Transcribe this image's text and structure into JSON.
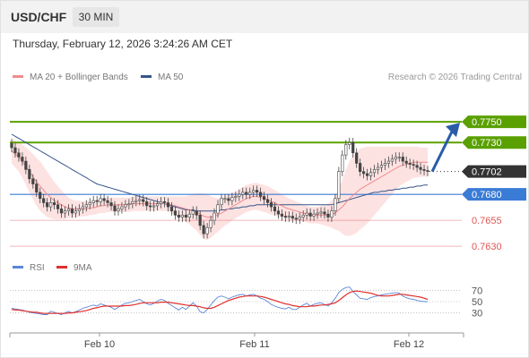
{
  "header": {
    "symbol": "USD/CHF",
    "timeframe": "30 MIN",
    "datetime": "Thursday, February 12, 2026 3:24:26 AM CET"
  },
  "legend": {
    "ma20": "MA 20 + Bollinger Bands",
    "ma50": "MA 50",
    "copyright": "Research © 2026 Trading Central",
    "rsi": "RSI",
    "rsi_ma": "9MA"
  },
  "colors": {
    "ma20": "#f08c8c",
    "bands_fill": "#fde2e2",
    "ma50": "#34558b",
    "resistance": "#5aa000",
    "support": "#3a7bd5",
    "support_minor": "#e05555",
    "current": "#333333",
    "arrow": "#2a5ca8",
    "rsi": "#5b86d9",
    "rsi_ma": "#e0302d",
    "candle_up": "#ffffff",
    "candle_down": "#444444"
  },
  "chart_data": {
    "type": "candlestick",
    "y_range": [
      0.7618,
      0.7782
    ],
    "levels": [
      {
        "value": 0.775,
        "label": "0.7750",
        "kind": "resistance"
      },
      {
        "value": 0.773,
        "label": "0.7730",
        "kind": "resistance"
      },
      {
        "value": 0.7702,
        "label": "0.7702",
        "kind": "current"
      },
      {
        "value": 0.768,
        "label": "0.7680",
        "kind": "support"
      },
      {
        "value": 0.7655,
        "label": "0.7655",
        "kind": "support_minor"
      },
      {
        "value": 0.763,
        "label": "0.7630",
        "kind": "support_minor"
      }
    ],
    "x_ticks": [
      "Feb 10",
      "Feb 11",
      "Feb 12"
    ],
    "close": [
      0.7725,
      0.772,
      0.7716,
      0.7712,
      0.7704,
      0.7695,
      0.769,
      0.7682,
      0.7676,
      0.7672,
      0.7668,
      0.7672,
      0.767,
      0.7666,
      0.7662,
      0.7664,
      0.7666,
      0.7662,
      0.7664,
      0.7666,
      0.7668,
      0.767,
      0.7672,
      0.7674,
      0.7673,
      0.7676,
      0.7674,
      0.7672,
      0.7669,
      0.7664,
      0.7666,
      0.7668,
      0.767,
      0.7671,
      0.7673,
      0.7674,
      0.7675,
      0.7673,
      0.7669,
      0.7668,
      0.7669,
      0.7671,
      0.7673,
      0.7672,
      0.7668,
      0.7664,
      0.766,
      0.7658,
      0.766,
      0.7658,
      0.7661,
      0.7664,
      0.766,
      0.765,
      0.7642,
      0.7648,
      0.7655,
      0.7662,
      0.767,
      0.7676,
      0.7676,
      0.7674,
      0.7677,
      0.7678,
      0.768,
      0.7682,
      0.768,
      0.7682,
      0.7684,
      0.7682,
      0.7678,
      0.7675,
      0.7672,
      0.7668,
      0.7664,
      0.7661,
      0.7659,
      0.7658,
      0.7659,
      0.7657,
      0.7656,
      0.7658,
      0.766,
      0.7662,
      0.7659,
      0.7661,
      0.7662,
      0.7663,
      0.7661,
      0.7658,
      0.7664,
      0.7676,
      0.7702,
      0.7718,
      0.7728,
      0.773,
      0.772,
      0.771,
      0.7702,
      0.77,
      0.7698,
      0.7701,
      0.7704,
      0.7706,
      0.7708,
      0.771,
      0.7712,
      0.7714,
      0.7716,
      0.7716,
      0.7712,
      0.771,
      0.7709,
      0.7708,
      0.7706,
      0.7704,
      0.7703,
      0.7702
    ],
    "ma20": [
      0.7722,
      0.7719,
      0.7716,
      0.7712,
      0.7707,
      0.7702,
      0.7697,
      0.7692,
      0.7688,
      0.7684,
      0.768,
      0.7677,
      0.7674,
      0.7672,
      0.767,
      0.7668,
      0.7667,
      0.7666,
      0.7666,
      0.7666,
      0.7666,
      0.7666,
      0.7667,
      0.7667,
      0.7668,
      0.7669,
      0.7669,
      0.767,
      0.767,
      0.767,
      0.767,
      0.767,
      0.767,
      0.767,
      0.7671,
      0.7671,
      0.7671,
      0.7671,
      0.7671,
      0.7671,
      0.7671,
      0.7671,
      0.7671,
      0.7671,
      0.7671,
      0.767,
      0.7669,
      0.7668,
      0.7667,
      0.7666,
      0.7665,
      0.7664,
      0.7663,
      0.7661,
      0.7659,
      0.7658,
      0.7658,
      0.7659,
      0.766,
      0.7662,
      0.7664,
      0.7666,
      0.7668,
      0.767,
      0.7672,
      0.7674,
      0.7676,
      0.7677,
      0.7678,
      0.7678,
      0.7677,
      0.7676,
      0.7675,
      0.7673,
      0.7672,
      0.767,
      0.7669,
      0.7667,
      0.7666,
      0.7665,
      0.7664,
      0.7663,
      0.7662,
      0.7661,
      0.766,
      0.766,
      0.766,
      0.766,
      0.766,
      0.766,
      0.7661,
      0.7662,
      0.7665,
      0.7668,
      0.7672,
      0.7676,
      0.7679,
      0.7682,
      0.7685,
      0.7687,
      0.7689,
      0.7691,
      0.7693,
      0.7695,
      0.7697,
      0.7699,
      0.7701,
      0.7703,
      0.7705,
      0.7707,
      0.7708,
      0.7709,
      0.771,
      0.7711,
      0.7711,
      0.7711,
      0.7711,
      0.7711
    ],
    "bb_width": [
      0.0012,
      0.0013,
      0.0014,
      0.0016,
      0.0018,
      0.002,
      0.0022,
      0.0023,
      0.0024,
      0.0023,
      0.0022,
      0.002,
      0.0018,
      0.0016,
      0.0014,
      0.0012,
      0.001,
      0.0009,
      0.0008,
      0.0008,
      0.0007,
      0.0007,
      0.0007,
      0.0007,
      0.0007,
      0.0007,
      0.0007,
      0.0007,
      0.0007,
      0.0007,
      0.0007,
      0.0007,
      0.0007,
      0.0007,
      0.0007,
      0.0007,
      0.0007,
      0.0007,
      0.0007,
      0.0007,
      0.0007,
      0.0007,
      0.0007,
      0.0007,
      0.0007,
      0.0008,
      0.0009,
      0.001,
      0.0011,
      0.0012,
      0.0014,
      0.0016,
      0.0018,
      0.002,
      0.0022,
      0.0022,
      0.002,
      0.0018,
      0.0016,
      0.0015,
      0.0014,
      0.0014,
      0.0013,
      0.0013,
      0.0013,
      0.0013,
      0.0013,
      0.0013,
      0.0013,
      0.0013,
      0.0013,
      0.0013,
      0.0013,
      0.0013,
      0.0012,
      0.0012,
      0.0011,
      0.0011,
      0.001,
      0.001,
      0.0009,
      0.0009,
      0.0008,
      0.0008,
      0.0008,
      0.0008,
      0.0008,
      0.0009,
      0.001,
      0.0011,
      0.0013,
      0.0016,
      0.002,
      0.0026,
      0.0032,
      0.0036,
      0.0038,
      0.0039,
      0.0039,
      0.0038,
      0.0037,
      0.0035,
      0.0033,
      0.0031,
      0.0029,
      0.0027,
      0.0025,
      0.0023,
      0.0021,
      0.0019,
      0.0018,
      0.0017,
      0.0016,
      0.0015,
      0.0015,
      0.0014,
      0.0014,
      0.0014
    ],
    "ma50": [
      0.7738,
      0.7736,
      0.7734,
      0.7732,
      0.773,
      0.7728,
      0.7726,
      0.7724,
      0.7722,
      0.772,
      0.7718,
      0.7716,
      0.7714,
      0.7712,
      0.771,
      0.7708,
      0.7706,
      0.7704,
      0.7702,
      0.77,
      0.7698,
      0.7696,
      0.7694,
      0.7692,
      0.769,
      0.7689,
      0.7688,
      0.7687,
      0.7686,
      0.7685,
      0.7684,
      0.7683,
      0.7682,
      0.7681,
      0.768,
      0.7679,
      0.7678,
      0.7677,
      0.7676,
      0.7675,
      0.7674,
      0.7673,
      0.7672,
      0.7671,
      0.767,
      0.7669,
      0.7668,
      0.7667,
      0.7666,
      0.7665,
      0.7665,
      0.7665,
      0.7664,
      0.7664,
      0.7664,
      0.7664,
      0.7664,
      0.7664,
      0.7664,
      0.7665,
      0.7665,
      0.7666,
      0.7666,
      0.7667,
      0.7667,
      0.7668,
      0.7668,
      0.7669,
      0.7669,
      0.767,
      0.767,
      0.767,
      0.767,
      0.767,
      0.767,
      0.767,
      0.767,
      0.767,
      0.767,
      0.767,
      0.767,
      0.767,
      0.767,
      0.767,
      0.767,
      0.767,
      0.767,
      0.767,
      0.767,
      0.767,
      0.767,
      0.7671,
      0.7672,
      0.7673,
      0.7674,
      0.7675,
      0.7676,
      0.7677,
      0.7678,
      0.7679,
      0.768,
      0.7681,
      0.7682,
      0.7682,
      0.7683,
      0.7683,
      0.7684,
      0.7684,
      0.7685,
      0.7685,
      0.7686,
      0.7686,
      0.7687,
      0.7687,
      0.7688,
      0.7688,
      0.7689,
      0.7689
    ],
    "rsi": {
      "ticks": [
        30,
        50,
        70
      ],
      "y_range": [
        15,
        85
      ],
      "rsi": [
        38,
        37,
        36,
        35,
        33,
        31,
        30,
        29,
        28,
        27,
        27,
        33,
        31,
        29,
        27,
        30,
        33,
        30,
        32,
        35,
        38,
        40,
        42,
        44,
        42,
        46,
        44,
        42,
        40,
        36,
        40,
        44,
        47,
        48,
        50,
        52,
        54,
        50,
        46,
        44,
        47,
        51,
        54,
        52,
        47,
        43,
        39,
        35,
        40,
        36,
        42,
        48,
        42,
        32,
        30,
        36,
        44,
        52,
        58,
        60,
        58,
        55,
        58,
        60,
        62,
        63,
        60,
        62,
        63,
        60,
        56,
        54,
        50,
        45,
        42,
        40,
        38,
        37,
        40,
        36,
        36,
        40,
        44,
        47,
        42,
        45,
        47,
        48,
        45,
        42,
        48,
        56,
        66,
        72,
        75,
        76,
        68,
        62,
        56,
        55,
        54,
        57,
        59,
        60,
        62,
        63,
        64,
        65,
        66,
        65,
        60,
        57,
        55,
        54,
        52,
        51,
        50,
        50
      ],
      "ma9": [
        36,
        35,
        35,
        34,
        33,
        32,
        31,
        31,
        30,
        29,
        29,
        29,
        29,
        29,
        29,
        29,
        30,
        30,
        31,
        32,
        33,
        34,
        36,
        38,
        39,
        41,
        42,
        42,
        42,
        42,
        42,
        42,
        43,
        43,
        44,
        45,
        47,
        48,
        48,
        48,
        48,
        48,
        49,
        49,
        49,
        48,
        47,
        46,
        45,
        44,
        43,
        43,
        42,
        41,
        39,
        38,
        38,
        40,
        43,
        46,
        49,
        52,
        54,
        56,
        58,
        59,
        60,
        60,
        60,
        60,
        59,
        58,
        56,
        54,
        52,
        50,
        48,
        46,
        45,
        43,
        42,
        41,
        41,
        41,
        42,
        42,
        43,
        44,
        44,
        45,
        46,
        48,
        52,
        57,
        62,
        66,
        68,
        69,
        68,
        67,
        66,
        65,
        63,
        61,
        60,
        60,
        60,
        61,
        62,
        63,
        63,
        62,
        61,
        60,
        59,
        58,
        56,
        54
      ]
    }
  }
}
